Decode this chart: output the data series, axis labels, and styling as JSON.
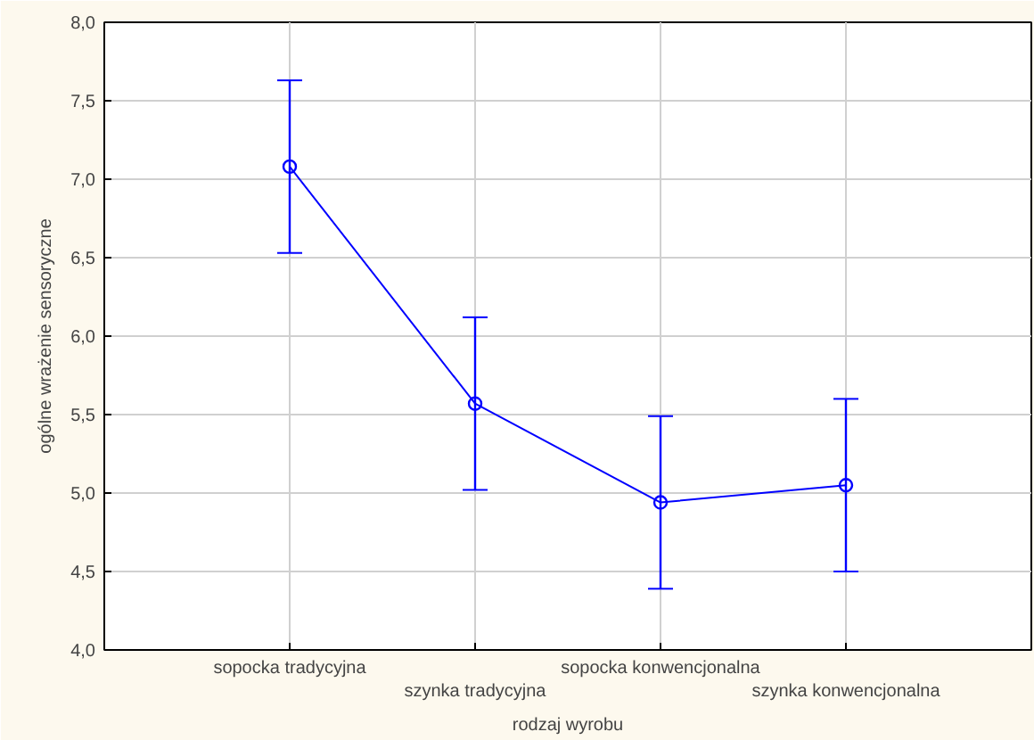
{
  "chart_data": {
    "type": "line",
    "xlabel": "rodzaj wyrobu",
    "ylabel": "ogólne wrażenie sensoryczne",
    "categories": [
      "sopocka tradycyjna",
      "szynka tradycyjna",
      "sopocka konwencjonalna",
      "szynka konwencjonalna"
    ],
    "series": [
      {
        "color": "#0000ff",
        "values": [
          7.08,
          5.57,
          4.94,
          5.05
        ],
        "errors": [
          0.55,
          0.55,
          0.55,
          0.55
        ]
      }
    ],
    "ylim": [
      4.0,
      8.0
    ],
    "yticks": [
      {
        "value": 4.0,
        "label": "4,0"
      },
      {
        "value": 4.5,
        "label": "4,5"
      },
      {
        "value": 5.0,
        "label": "5,0"
      },
      {
        "value": 5.5,
        "label": "5,5"
      },
      {
        "value": 6.0,
        "label": "6,0"
      },
      {
        "value": 6.5,
        "label": "6,5"
      },
      {
        "value": 7.0,
        "label": "7,0"
      },
      {
        "value": 7.5,
        "label": "7,5"
      },
      {
        "value": 8.0,
        "label": "8,0"
      }
    ],
    "grid": true,
    "marker": "circle",
    "line_style": "solid"
  }
}
